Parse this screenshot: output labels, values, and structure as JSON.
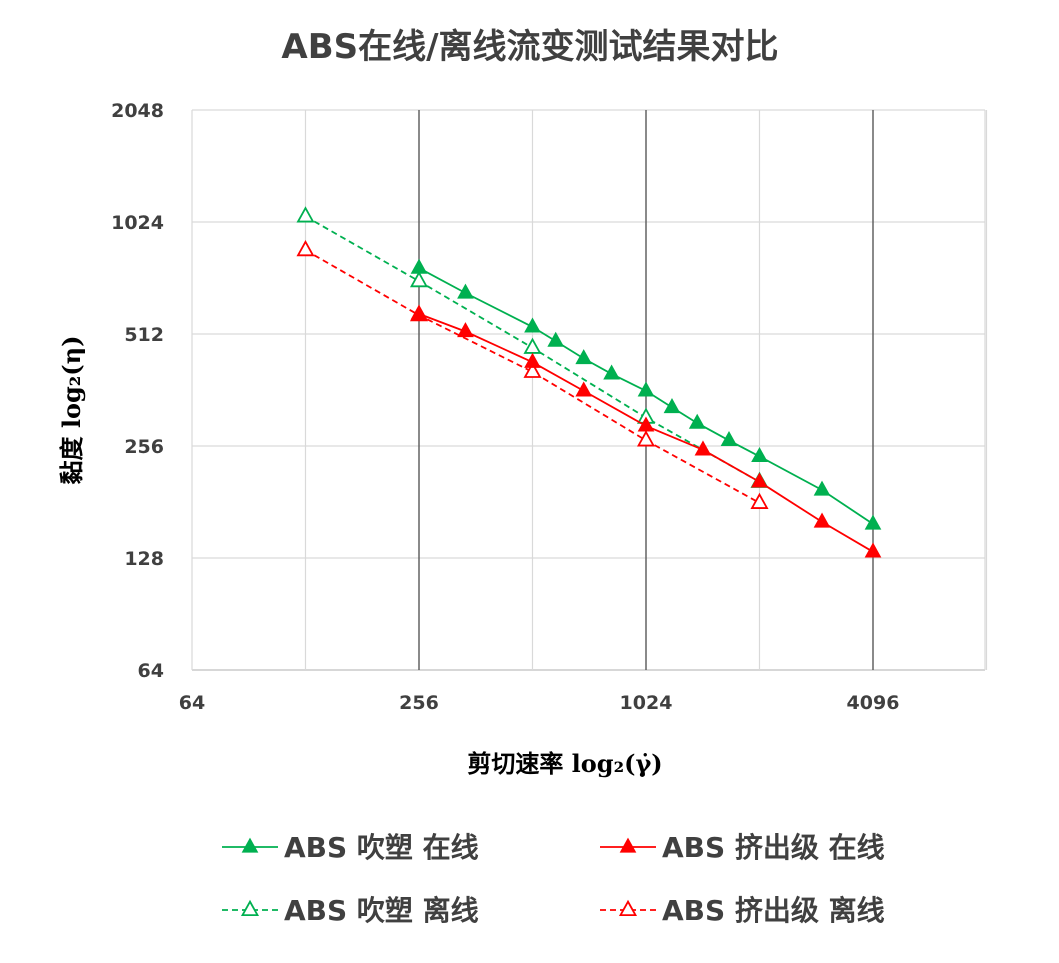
{
  "chart_data": {
    "type": "line",
    "title": "ABS在线/离线流变测试结果对比",
    "xlabel": "剪切速率 log₂(γ̇)",
    "ylabel": "黏度 log₂(η)",
    "x_scale": "log2",
    "y_scale": "log2",
    "xlim": [
      64,
      6000
    ],
    "ylim": [
      64,
      2048
    ],
    "x_ticks": [
      "64",
      "256",
      "1024",
      "4096"
    ],
    "y_ticks": [
      "64",
      "128",
      "256",
      "512",
      "1024",
      "2048"
    ],
    "x_tick_values": [
      64,
      256,
      1024,
      4096
    ],
    "y_tick_values": [
      64,
      128,
      256,
      512,
      1024,
      2048
    ],
    "grid": true,
    "legend_position": "bottom",
    "series": [
      {
        "name": "ABS 吹塑 在线",
        "color": "#00B050",
        "marker": "filled-triangle",
        "line_style": "solid",
        "x": [
          256,
          340,
          512,
          590,
          700,
          830,
          1024,
          1200,
          1400,
          1700,
          2048,
          3000,
          4096
        ],
        "y": [
          770,
          660,
          535,
          490,
          440,
          400,
          360,
          325,
          295,
          265,
          240,
          195,
          158
        ]
      },
      {
        "name": "ABS 挤出级 在线",
        "color": "#FF0000",
        "marker": "filled-triangle",
        "line_style": "solid",
        "x": [
          256,
          340,
          512,
          700,
          1024,
          1450,
          2048,
          3000,
          4096
        ],
        "y": [
          580,
          520,
          430,
          360,
          290,
          250,
          205,
          160,
          133
        ]
      },
      {
        "name": "ABS 吹塑 离线",
        "color": "#00B050",
        "marker": "hollow-triangle",
        "line_style": "dashed",
        "x": [
          128,
          256,
          512,
          1024,
          2048
        ],
        "y": [
          1060,
          710,
          470,
          305,
          205
        ]
      },
      {
        "name": "ABS 挤出级 离线",
        "color": "#FF0000",
        "marker": "hollow-triangle",
        "line_style": "dashed",
        "x": [
          128,
          256,
          512,
          1024,
          2048
        ],
        "y": [
          860,
          575,
          405,
          265,
          180
        ]
      }
    ]
  }
}
